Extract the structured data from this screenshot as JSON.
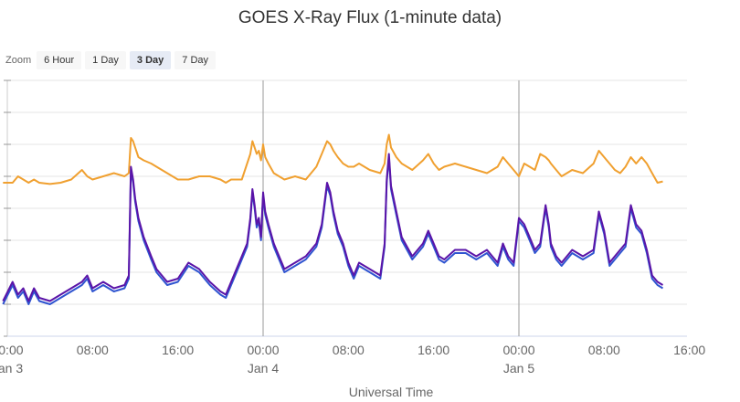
{
  "zoom": {
    "label": "Zoom",
    "options": [
      "6 Hour",
      "1 Day",
      "3 Day",
      "7 Day"
    ],
    "selected": "3 Day"
  },
  "chart_data": {
    "type": "line",
    "title": "GOES X-Ray Flux (1-minute data)",
    "xlabel": "Universal Time",
    "ylabel": "",
    "x_unit": "hours since Jan 3 00:00 UT",
    "xlim": [
      -0.4,
      67
    ],
    "ylim": [
      -8,
      -4
    ],
    "yscale": "log",
    "grid": true,
    "x_ticks": [
      {
        "x": 0,
        "labels": [
          "00:00",
          "Jan 3"
        ]
      },
      {
        "x": 8,
        "labels": [
          "08:00"
        ]
      },
      {
        "x": 16,
        "labels": [
          "16:00"
        ]
      },
      {
        "x": 24,
        "labels": [
          "00:00",
          "Jan 4"
        ],
        "day_line": true
      },
      {
        "x": 32,
        "labels": [
          "08:00"
        ]
      },
      {
        "x": 40,
        "labels": [
          "16:00"
        ]
      },
      {
        "x": 48,
        "labels": [
          "00:00",
          "Jan 5"
        ],
        "day_line": true
      },
      {
        "x": 56,
        "labels": [
          "08:00"
        ]
      },
      {
        "x": 64,
        "labels": [
          "16:00"
        ]
      }
    ],
    "series": [
      {
        "color": "#f0a030",
        "x": [
          -0.4,
          0.5,
          1.0,
          1.5,
          2.0,
          2.5,
          3.0,
          4.0,
          5.0,
          6.0,
          7.0,
          7.5,
          8.0,
          9.0,
          10.0,
          11.0,
          11.4,
          11.6,
          11.8,
          12.0,
          12.3,
          12.8,
          13.5,
          14.0,
          15.0,
          16.0,
          17.0,
          18.0,
          19.0,
          20.0,
          20.5,
          21.0,
          22.0,
          22.5,
          22.8,
          23.0,
          23.2,
          23.4,
          23.6,
          23.8,
          24.0,
          24.2,
          24.5,
          25.0,
          25.5,
          26.0,
          27.0,
          28.0,
          29.0,
          29.5,
          30.0,
          30.3,
          30.6,
          31.0,
          31.5,
          32.0,
          32.5,
          33.0,
          34.0,
          35.0,
          35.4,
          35.6,
          35.8,
          36.0,
          36.5,
          37.0,
          38.0,
          39.0,
          39.5,
          40.0,
          40.5,
          41.0,
          42.0,
          43.0,
          44.0,
          45.0,
          46.0,
          46.5,
          47.0,
          47.5,
          48.0,
          48.5,
          49.0,
          49.5,
          50.0,
          50.5,
          50.8,
          51.0,
          51.5,
          52.0,
          53.0,
          54.0,
          55.0,
          55.5,
          56.0,
          56.5,
          57.0,
          57.5,
          58.0,
          58.5,
          59.0,
          59.5,
          60.0,
          60.5,
          61.0,
          61.5
        ],
        "y": [
          -5.6,
          -5.6,
          -5.5,
          -5.55,
          -5.6,
          -5.55,
          -5.6,
          -5.62,
          -5.6,
          -5.55,
          -5.4,
          -5.5,
          -5.55,
          -5.5,
          -5.45,
          -5.5,
          -5.45,
          -4.9,
          -4.95,
          -5.05,
          -5.2,
          -5.25,
          -5.3,
          -5.35,
          -5.45,
          -5.55,
          -5.55,
          -5.5,
          -5.5,
          -5.55,
          -5.6,
          -5.55,
          -5.55,
          -5.3,
          -5.15,
          -4.95,
          -5.05,
          -5.15,
          -5.1,
          -5.25,
          -5.0,
          -5.2,
          -5.3,
          -5.45,
          -5.5,
          -5.55,
          -5.5,
          -5.55,
          -5.35,
          -5.15,
          -4.95,
          -5.0,
          -5.1,
          -5.2,
          -5.3,
          -5.35,
          -5.35,
          -5.3,
          -5.4,
          -5.45,
          -5.3,
          -5.0,
          -4.85,
          -5.05,
          -5.2,
          -5.3,
          -5.4,
          -5.25,
          -5.15,
          -5.3,
          -5.4,
          -5.35,
          -5.3,
          -5.35,
          -5.4,
          -5.45,
          -5.35,
          -5.2,
          -5.3,
          -5.4,
          -5.5,
          -5.3,
          -5.35,
          -5.4,
          -5.15,
          -5.2,
          -5.25,
          -5.3,
          -5.4,
          -5.5,
          -5.4,
          -5.45,
          -5.3,
          -5.1,
          -5.2,
          -5.3,
          -5.4,
          -5.45,
          -5.35,
          -5.2,
          -5.3,
          -5.2,
          -5.3,
          -5.45,
          -5.6,
          -5.58
        ]
      },
      {
        "color": "#2f54d0",
        "x": [
          -0.4,
          0.5,
          1.0,
          1.5,
          2.0,
          2.5,
          3.0,
          4.0,
          5.0,
          6.0,
          7.0,
          7.5,
          8.0,
          9.0,
          10.0,
          11.0,
          11.4,
          11.6,
          11.8,
          12.0,
          12.3,
          12.8,
          13.5,
          14.0,
          15.0,
          16.0,
          17.0,
          18.0,
          19.0,
          20.0,
          20.5,
          21.0,
          22.0,
          22.5,
          22.8,
          23.0,
          23.2,
          23.4,
          23.6,
          23.8,
          24.0,
          24.2,
          24.5,
          25.0,
          25.5,
          26.0,
          27.0,
          28.0,
          29.0,
          29.5,
          30.0,
          30.3,
          30.6,
          31.0,
          31.5,
          32.0,
          32.5,
          33.0,
          34.0,
          35.0,
          35.4,
          35.6,
          35.8,
          36.0,
          36.5,
          37.0,
          38.0,
          39.0,
          39.5,
          40.0,
          40.5,
          41.0,
          42.0,
          43.0,
          44.0,
          45.0,
          46.0,
          46.5,
          47.0,
          47.5,
          48.0,
          48.5,
          49.0,
          49.5,
          50.0,
          50.5,
          50.8,
          51.0,
          51.5,
          52.0,
          53.0,
          54.0,
          55.0,
          55.5,
          56.0,
          56.5,
          57.0,
          57.5,
          58.0,
          58.5,
          59.0,
          59.5,
          60.0,
          60.5,
          61.0,
          61.5
        ],
        "y": [
          -7.5,
          -7.2,
          -7.4,
          -7.3,
          -7.5,
          -7.3,
          -7.45,
          -7.5,
          -7.4,
          -7.3,
          -7.2,
          -7.1,
          -7.3,
          -7.2,
          -7.3,
          -7.25,
          -7.1,
          -5.4,
          -5.6,
          -5.9,
          -6.2,
          -6.5,
          -6.8,
          -7.0,
          -7.2,
          -7.15,
          -6.9,
          -7.0,
          -7.2,
          -7.35,
          -7.4,
          -7.2,
          -6.8,
          -6.6,
          -6.2,
          -5.75,
          -6.0,
          -6.3,
          -6.2,
          -6.5,
          -5.8,
          -6.1,
          -6.3,
          -6.6,
          -6.8,
          -7.0,
          -6.9,
          -6.8,
          -6.6,
          -6.3,
          -5.65,
          -5.8,
          -6.1,
          -6.4,
          -6.6,
          -6.9,
          -7.1,
          -6.9,
          -7.0,
          -7.1,
          -6.6,
          -5.6,
          -5.2,
          -5.7,
          -6.1,
          -6.5,
          -6.8,
          -6.6,
          -6.4,
          -6.6,
          -6.8,
          -6.85,
          -6.7,
          -6.7,
          -6.8,
          -6.7,
          -6.9,
          -6.6,
          -6.8,
          -6.9,
          -6.2,
          -6.3,
          -6.5,
          -6.7,
          -6.6,
          -6.0,
          -6.3,
          -6.6,
          -6.8,
          -6.9,
          -6.7,
          -6.8,
          -6.7,
          -6.1,
          -6.4,
          -6.9,
          -6.8,
          -6.7,
          -6.6,
          -6.0,
          -6.3,
          -6.4,
          -6.7,
          -7.1,
          -7.2,
          -7.25
        ]
      },
      {
        "color": "#5a14a8",
        "x": [
          -0.4,
          0.5,
          1.0,
          1.5,
          2.0,
          2.5,
          3.0,
          4.0,
          5.0,
          6.0,
          7.0,
          7.5,
          8.0,
          9.0,
          10.0,
          11.0,
          11.4,
          11.6,
          11.8,
          12.0,
          12.3,
          12.8,
          13.5,
          14.0,
          15.0,
          16.0,
          17.0,
          18.0,
          19.0,
          20.0,
          20.5,
          21.0,
          22.0,
          22.5,
          22.8,
          23.0,
          23.2,
          23.4,
          23.6,
          23.8,
          24.0,
          24.2,
          24.5,
          25.0,
          25.5,
          26.0,
          27.0,
          28.0,
          29.0,
          29.5,
          30.0,
          30.3,
          30.6,
          31.0,
          31.5,
          32.0,
          32.5,
          33.0,
          34.0,
          35.0,
          35.4,
          35.6,
          35.8,
          36.0,
          36.5,
          37.0,
          38.0,
          39.0,
          39.5,
          40.0,
          40.5,
          41.0,
          42.0,
          43.0,
          44.0,
          45.0,
          46.0,
          46.5,
          47.0,
          47.5,
          48.0,
          48.5,
          49.0,
          49.5,
          50.0,
          50.5,
          50.8,
          51.0,
          51.5,
          52.0,
          53.0,
          54.0,
          55.0,
          55.5,
          56.0,
          56.5,
          57.0,
          57.5,
          58.0,
          58.5,
          59.0,
          59.5,
          60.0,
          60.5,
          61.0,
          61.5
        ],
        "y": [
          -7.45,
          -7.15,
          -7.35,
          -7.25,
          -7.45,
          -7.25,
          -7.4,
          -7.45,
          -7.35,
          -7.25,
          -7.15,
          -7.05,
          -7.25,
          -7.15,
          -7.25,
          -7.2,
          -7.05,
          -5.35,
          -5.55,
          -5.85,
          -6.15,
          -6.45,
          -6.75,
          -6.95,
          -7.15,
          -7.1,
          -6.85,
          -6.95,
          -7.15,
          -7.3,
          -7.35,
          -7.15,
          -6.75,
          -6.55,
          -6.15,
          -5.7,
          -5.95,
          -6.25,
          -6.15,
          -6.45,
          -5.75,
          -6.05,
          -6.25,
          -6.55,
          -6.75,
          -6.95,
          -6.85,
          -6.75,
          -6.55,
          -6.25,
          -5.6,
          -5.75,
          -6.05,
          -6.35,
          -6.55,
          -6.85,
          -7.05,
          -6.85,
          -6.95,
          -7.05,
          -6.55,
          -5.55,
          -5.15,
          -5.65,
          -6.05,
          -6.45,
          -6.75,
          -6.55,
          -6.35,
          -6.55,
          -6.75,
          -6.8,
          -6.65,
          -6.65,
          -6.75,
          -6.65,
          -6.85,
          -6.55,
          -6.75,
          -6.85,
          -6.15,
          -6.25,
          -6.45,
          -6.65,
          -6.55,
          -5.95,
          -6.25,
          -6.55,
          -6.75,
          -6.85,
          -6.65,
          -6.75,
          -6.65,
          -6.05,
          -6.35,
          -6.85,
          -6.75,
          -6.65,
          -6.55,
          -5.95,
          -6.25,
          -6.35,
          -6.65,
          -7.05,
          -7.15,
          -7.2
        ]
      }
    ]
  }
}
